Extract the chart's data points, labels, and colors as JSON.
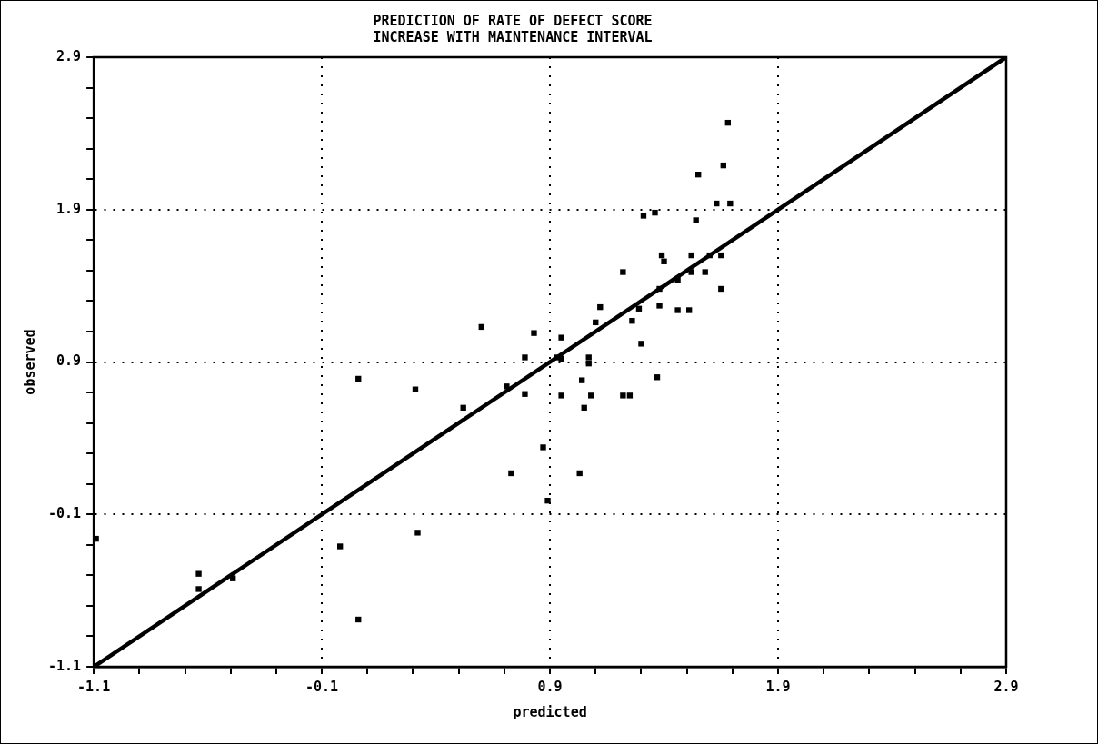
{
  "chart_data": {
    "type": "scatter",
    "title": "PREDICTION OF RATE OF DEFECT SCORE\nINCREASE WITH MAINTENANCE INTERVAL",
    "xlabel": "predicted",
    "ylabel": "observed",
    "marker": "square",
    "grid": true,
    "xlim": [
      -1.1,
      2.9
    ],
    "ylim": [
      -1.1,
      2.9
    ],
    "xticks": [
      -1.1,
      {
        "value": -0.9,
        "label": null
      },
      {
        "value": -0.7,
        "label": null
      },
      {
        "value": -0.5,
        "label": null
      },
      {
        "value": -0.3,
        "label": null
      },
      -0.1,
      {
        "value": 0.1,
        "label": null
      },
      {
        "value": 0.3,
        "label": null
      },
      {
        "value": 0.5,
        "label": null
      },
      {
        "value": 0.7,
        "label": null
      },
      0.9,
      {
        "value": 1.1,
        "label": null
      },
      {
        "value": 1.3,
        "label": null
      },
      {
        "value": 1.5,
        "label": null
      },
      {
        "value": 1.7,
        "label": null
      },
      1.9,
      {
        "value": 2.1,
        "label": null
      },
      {
        "value": 2.3,
        "label": null
      },
      {
        "value": 2.5,
        "label": null
      },
      {
        "value": 2.7,
        "label": null
      },
      2.9
    ],
    "yticks": [
      -1.1,
      {
        "value": -0.9,
        "label": null
      },
      {
        "value": -0.7,
        "label": null
      },
      {
        "value": -0.5,
        "label": null
      },
      {
        "value": -0.3,
        "label": null
      },
      -0.1,
      {
        "value": 0.1,
        "label": null
      },
      {
        "value": 0.3,
        "label": null
      },
      {
        "value": 0.5,
        "label": null
      },
      {
        "value": 0.7,
        "label": null
      },
      0.9,
      {
        "value": 1.1,
        "label": null
      },
      {
        "value": 1.3,
        "label": null
      },
      {
        "value": 1.5,
        "label": null
      },
      {
        "value": 1.7,
        "label": null
      },
      1.9,
      {
        "value": 2.1,
        "label": null
      },
      {
        "value": 2.3,
        "label": null
      },
      {
        "value": 2.5,
        "label": null
      },
      {
        "value": 2.7,
        "label": null
      },
      2.9
    ],
    "series": [
      {
        "color": "#000000",
        "x": [
          -1.09,
          -0.64,
          -0.64,
          -0.49,
          -0.02,
          0.06,
          0.06,
          0.31,
          0.6,
          0.52,
          0.83,
          0.79,
          0.71,
          0.79,
          0.73,
          0.87,
          0.89,
          0.32,
          0.95,
          0.93,
          0.95,
          1.07,
          1.07,
          1.04,
          0.95,
          1.08,
          1.05,
          1.03,
          1.1,
          1.12,
          1.22,
          1.25,
          1.26,
          1.3,
          1.29,
          1.22,
          1.31,
          1.36,
          1.54,
          1.63,
          1.69,
          1.39,
          1.4,
          1.52,
          1.6,
          1.65,
          1.52,
          1.58,
          1.46,
          1.38,
          1.65,
          1.38,
          1.46,
          1.51,
          1.37,
          1.68,
          1.66,
          1.55
        ],
        "values": [
          -0.26,
          -0.49,
          -0.59,
          -0.52,
          -0.31,
          -0.79,
          0.79,
          0.72,
          1.13,
          0.6,
          1.09,
          0.93,
          0.74,
          0.69,
          0.17,
          0.34,
          -0.01,
          -0.22,
          1.06,
          0.93,
          0.92,
          0.93,
          0.89,
          0.78,
          0.68,
          0.68,
          0.6,
          0.17,
          1.16,
          1.26,
          0.68,
          0.68,
          1.17,
          1.02,
          1.25,
          1.49,
          1.86,
          1.88,
          1.83,
          1.94,
          1.94,
          1.6,
          1.56,
          1.6,
          1.6,
          1.6,
          1.49,
          1.49,
          1.44,
          1.38,
          1.38,
          1.27,
          1.24,
          1.24,
          0.8,
          2.47,
          2.19,
          2.13
        ]
      },
      {
        "type": "line",
        "color": "#000000",
        "marker": "none",
        "x": [
          -1.1,
          2.9
        ],
        "values": [
          -1.1,
          2.9
        ]
      }
    ]
  }
}
